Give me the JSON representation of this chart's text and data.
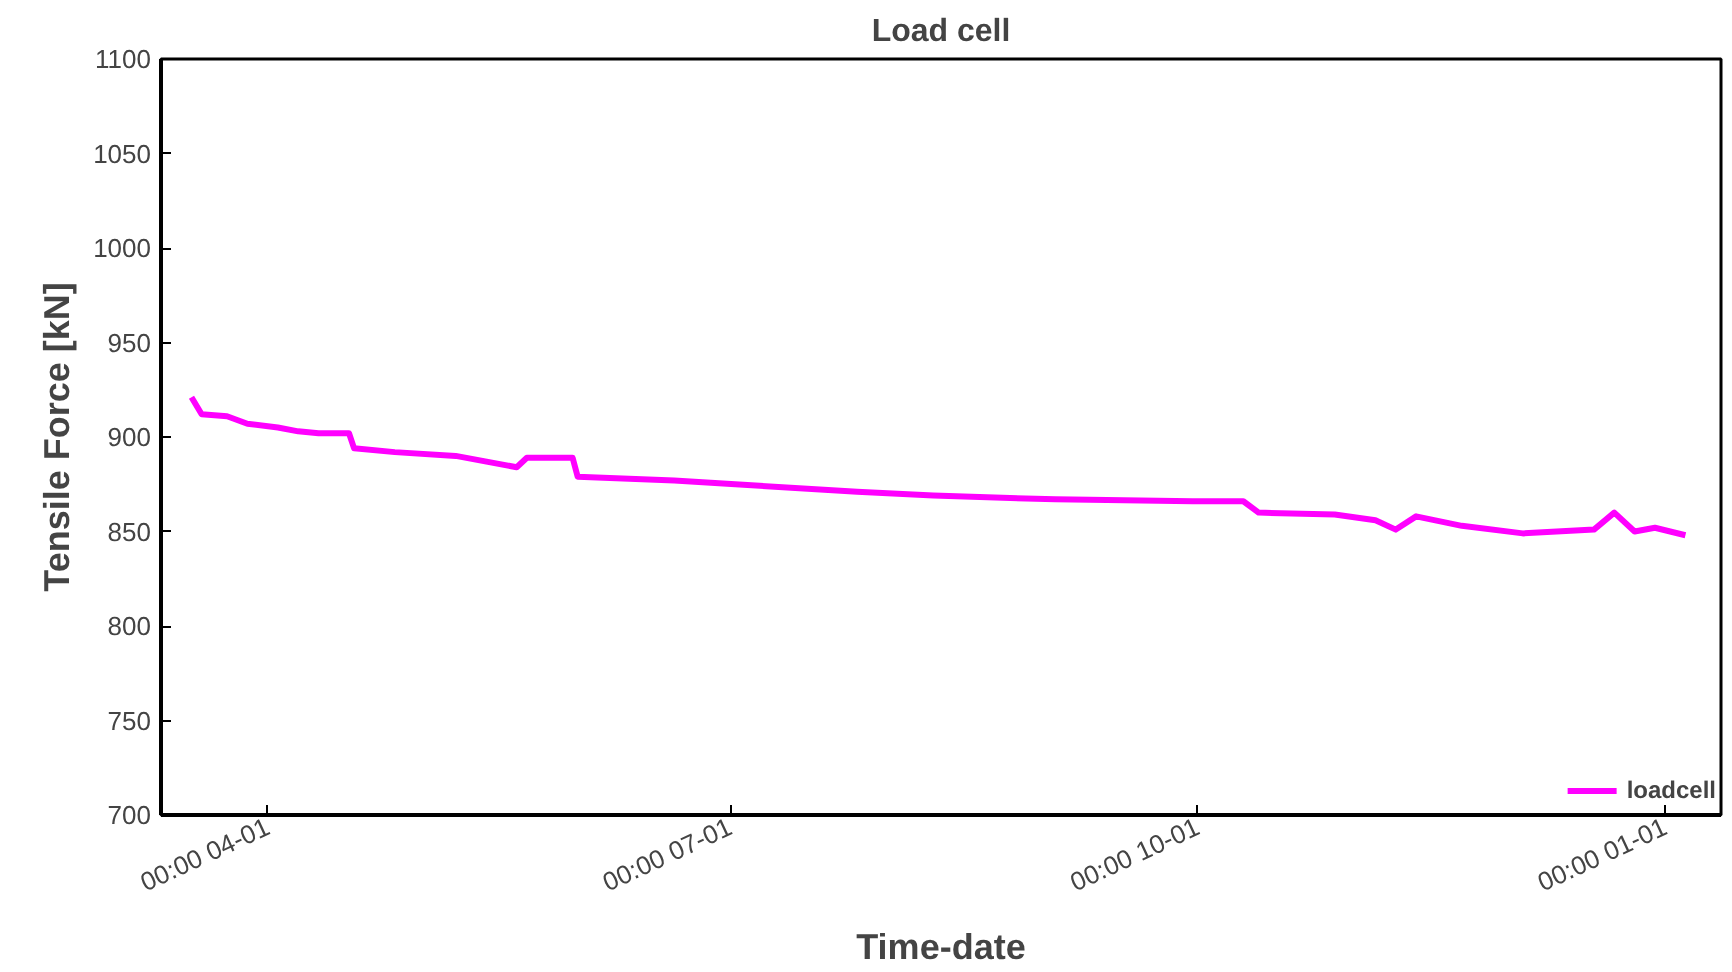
{
  "chart_data": {
    "type": "line",
    "title": "Load cell",
    "xlabel": "Time-date",
    "ylabel": "Tensile Force [kN]",
    "x": [
      "2000-03-17",
      "2000-03-19",
      "2000-03-24",
      "2000-03-28",
      "2000-04-03",
      "2000-04-07",
      "2000-04-11",
      "2000-04-17",
      "2000-04-18",
      "2000-04-26",
      "2000-05-08",
      "2000-05-20",
      "2000-05-22",
      "2000-05-31",
      "2000-06-01",
      "2000-06-20",
      "2000-07-02",
      "2000-07-26",
      "2000-08-10",
      "2000-09-03",
      "2000-09-30",
      "2000-10-10",
      "2000-10-13",
      "2000-10-28",
      "2000-11-05",
      "2000-11-09",
      "2000-11-13",
      "2000-11-22",
      "2000-12-04",
      "2000-12-18",
      "2000-12-22",
      "2000-12-26",
      "2000-12-30",
      "2001-01-05"
    ],
    "series": [
      {
        "name": "loadcell",
        "color": "#ff00ff",
        "values": [
          921,
          912,
          911,
          907,
          905,
          903,
          902,
          902,
          894,
          892,
          890,
          884,
          889,
          889,
          879,
          877,
          875,
          871,
          869,
          867,
          866,
          866,
          860,
          859,
          856,
          851,
          858,
          853,
          849,
          851,
          860,
          850,
          852,
          848
        ]
      }
    ],
    "xlim": [
      "2000-03-11",
      "2001-01-12"
    ],
    "xticks": [
      {
        "value": "2000-04-01",
        "label": "00:00 04-01"
      },
      {
        "value": "2000-07-01",
        "label": "00:00 07-01"
      },
      {
        "value": "2000-10-01",
        "label": "00:00 10-01"
      },
      {
        "value": "2001-01-01",
        "label": "00:00 01-01"
      }
    ],
    "ylim": [
      700,
      1100
    ],
    "yticks": [
      700,
      750,
      800,
      850,
      900,
      950,
      1000,
      1050,
      1100
    ],
    "legend": "bottom right",
    "grid": false,
    "line_style": "solid",
    "marker": "none"
  }
}
